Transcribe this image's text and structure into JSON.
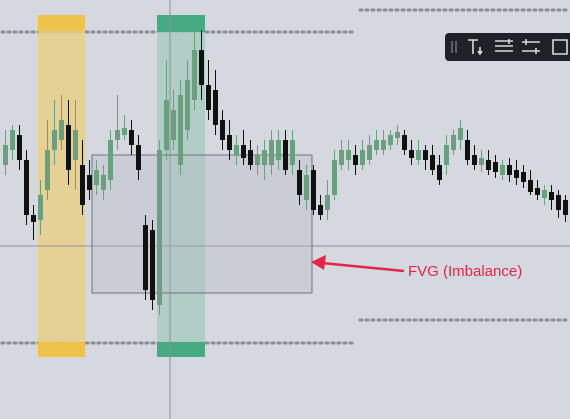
{
  "annotation": {
    "label": "FVG (Imbalance)"
  }
}
